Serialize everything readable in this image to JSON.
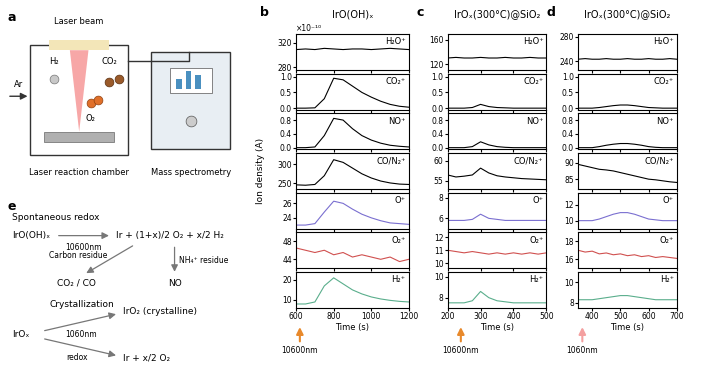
{
  "chart_data": [
    {
      "type": "line",
      "panel_label": "b",
      "title": "IrO(OH)ₓ",
      "multiplier": "×10⁻¹⁰",
      "ylabel": "Ion density (A)",
      "xlabel": "Time (s)",
      "x": [
        600,
        650,
        700,
        750,
        800,
        850,
        900,
        950,
        1000,
        1050,
        1100,
        1150,
        1200
      ],
      "xlim": [
        600,
        1200
      ],
      "xticks": [
        600,
        800,
        1000,
        1200
      ],
      "laser": {
        "wavelength": "10600nm",
        "time": 620,
        "color": "#e8892b"
      },
      "series": [
        {
          "name": "H₂O⁺",
          "color": "#000000",
          "values": [
            309,
            310,
            309,
            311,
            310,
            309,
            310,
            310,
            309,
            310,
            311,
            310,
            309
          ],
          "ylim": [
            275,
            335
          ],
          "yticks": [
            280,
            320
          ]
        },
        {
          "name": "CO₂⁺",
          "color": "#000000",
          "values": [
            0.0,
            0.0,
            0.01,
            0.3,
            0.95,
            0.9,
            0.7,
            0.5,
            0.35,
            0.22,
            0.12,
            0.06,
            0.03
          ],
          "ylim": [
            -0.05,
            1.1
          ],
          "yticks": [
            {
              "value": 0,
              "label": "0.0"
            },
            0.5,
            {
              "value": 1,
              "label": "1.0"
            }
          ]
        },
        {
          "name": "NO⁺",
          "color": "#000000",
          "values": [
            0.0,
            0.0,
            0.02,
            0.35,
            0.85,
            0.8,
            0.55,
            0.35,
            0.22,
            0.13,
            0.07,
            0.04,
            0.02
          ],
          "ylim": [
            -0.05,
            1.0
          ],
          "yticks": [
            {
              "value": 0,
              "label": "0.0"
            },
            0.4,
            0.8
          ]
        },
        {
          "name": "CO/N₂⁺",
          "color": "#000000",
          "values": [
            246,
            245,
            247,
            270,
            312,
            305,
            290,
            275,
            264,
            256,
            251,
            248,
            247
          ],
          "ylim": [
            235,
            330
          ],
          "yticks": [
            250,
            300
          ]
        },
        {
          "name": "O⁺",
          "color": "#7a6fd0",
          "values": [
            23.0,
            23.0,
            23.2,
            24.8,
            26.3,
            26.0,
            25.2,
            24.5,
            24.0,
            23.6,
            23.3,
            23.2,
            23.1
          ],
          "ylim": [
            22.5,
            27.5
          ],
          "yticks": [
            24,
            26
          ]
        },
        {
          "name": "O₂⁺",
          "color": "#d0504f",
          "values": [
            46.5,
            46,
            45.5,
            46,
            45,
            45.5,
            44.5,
            45,
            44.5,
            44,
            44.5,
            43.5,
            44
          ],
          "ylim": [
            42,
            50
          ],
          "yticks": [
            44,
            48
          ]
        },
        {
          "name": "H₂⁺",
          "color": "#5aae8c",
          "values": [
            8,
            8,
            9,
            17,
            21,
            18,
            15,
            13,
            11.5,
            10.5,
            9.8,
            9.3,
            9
          ],
          "ylim": [
            6,
            24
          ],
          "yticks": [
            10,
            20
          ]
        }
      ]
    },
    {
      "type": "line",
      "panel_label": "c",
      "title": "IrOₓ(300°C)@SiO₂",
      "xlabel": "Time (s)",
      "x": [
        200,
        225,
        250,
        275,
        300,
        325,
        350,
        375,
        400,
        425,
        450,
        475,
        500
      ],
      "xlim": [
        200,
        500
      ],
      "xticks": [
        200,
        300,
        400,
        500
      ],
      "laser": {
        "wavelength": "10600nm",
        "time": 240,
        "color": "#e8892b"
      },
      "series": [
        {
          "name": "H₂O⁺",
          "color": "#000000",
          "values": [
            130,
            131,
            130,
            130,
            131,
            130,
            130,
            131,
            130,
            130,
            131,
            130,
            130
          ],
          "ylim": [
            110,
            170
          ],
          "yticks": [
            120,
            160
          ]
        },
        {
          "name": "CO₂⁺",
          "color": "#000000",
          "values": [
            0,
            0,
            0,
            0.02,
            0.12,
            0.05,
            0.02,
            0.01,
            0,
            0,
            0,
            0,
            0
          ],
          "ylim": [
            -0.05,
            1.1
          ],
          "yticks": [
            {
              "value": 0,
              "label": "0.0"
            },
            0.5,
            {
              "value": 1,
              "label": "1.0"
            }
          ]
        },
        {
          "name": "NO⁺",
          "color": "#000000",
          "values": [
            0,
            0,
            0,
            0.03,
            0.17,
            0.08,
            0.03,
            0.01,
            0,
            0,
            0,
            0,
            0
          ],
          "ylim": [
            -0.05,
            1.0
          ],
          "yticks": [
            {
              "value": 0,
              "label": "0.0"
            },
            0.4,
            0.8
          ]
        },
        {
          "name": "CO/N₂⁺",
          "color": "#000000",
          "values": [
            56.5,
            56,
            56.2,
            56.5,
            58.2,
            57,
            56.3,
            56,
            55.8,
            55.6,
            55.5,
            55.4,
            55.3
          ],
          "ylim": [
            53,
            62
          ],
          "yticks": [
            55,
            60
          ]
        },
        {
          "name": "O⁺",
          "color": "#7a6fd0",
          "values": [
            5.8,
            5.8,
            5.8,
            5.9,
            6.4,
            6.0,
            5.9,
            5.8,
            5.8,
            5.8,
            5.8,
            5.8,
            5.8
          ],
          "ylim": [
            5,
            8.5
          ],
          "yticks": [
            6,
            8
          ]
        },
        {
          "name": "O₂⁺",
          "color": "#d0504f",
          "values": [
            11.0,
            10.9,
            10.8,
            10.9,
            10.8,
            10.7,
            10.8,
            10.7,
            10.8,
            10.7,
            10.8,
            10.7,
            10.8
          ],
          "ylim": [
            9.6,
            12.4
          ],
          "yticks": [
            10,
            11,
            12
          ]
        },
        {
          "name": "H₂⁺",
          "color": "#5aae8c",
          "values": [
            7.5,
            7.5,
            7.5,
            7.7,
            8.6,
            8.0,
            7.7,
            7.6,
            7.5,
            7.5,
            7.5,
            7.5,
            7.5
          ],
          "ylim": [
            7,
            10.5
          ],
          "yticks": [
            8,
            10
          ]
        }
      ]
    },
    {
      "type": "line",
      "panel_label": "d",
      "title": "IrOₓ(300°C)@SiO₂",
      "xlabel": "Time (s)",
      "x": [
        350,
        375,
        400,
        425,
        450,
        475,
        500,
        525,
        550,
        575,
        600,
        625,
        650,
        675,
        700
      ],
      "xlim": [
        350,
        700
      ],
      "xticks": [
        400,
        500,
        600,
        700
      ],
      "laser": {
        "wavelength": "1060nm",
        "time": 365,
        "color": "#f4a0a0"
      },
      "series": [
        {
          "name": "H₂O⁺",
          "color": "#000000",
          "values": [
            243,
            244,
            243,
            243,
            244,
            243,
            243,
            244,
            243,
            243,
            244,
            243,
            243,
            244,
            243
          ],
          "ylim": [
            225,
            285
          ],
          "yticks": [
            240,
            280
          ]
        },
        {
          "name": "CO₂⁺",
          "color": "#000000",
          "values": [
            0,
            0,
            0,
            0.02,
            0.05,
            0.08,
            0.1,
            0.1,
            0.08,
            0.05,
            0.02,
            0.01,
            0,
            0,
            0
          ],
          "ylim": [
            -0.05,
            1.1
          ],
          "yticks": [
            {
              "value": 0,
              "label": "0.0"
            },
            0.5,
            {
              "value": 1,
              "label": "1.0"
            }
          ]
        },
        {
          "name": "NO⁺",
          "color": "#000000",
          "values": [
            0,
            0,
            0,
            0.03,
            0.07,
            0.1,
            0.12,
            0.12,
            0.1,
            0.07,
            0.03,
            0.01,
            0,
            0,
            0
          ],
          "ylim": [
            -0.05,
            1.0
          ],
          "yticks": [
            {
              "value": 0,
              "label": "0.0"
            },
            0.4,
            0.8
          ]
        },
        {
          "name": "CO/N₂⁺",
          "color": "#000000",
          "values": [
            89.5,
            89,
            88.5,
            88,
            87.8,
            87.5,
            87,
            86.5,
            86,
            85.5,
            85,
            84.8,
            84.5,
            84.2,
            84
          ],
          "ylim": [
            82,
            93
          ],
          "yticks": [
            85,
            90
          ]
        },
        {
          "name": "O⁺",
          "color": "#7a6fd0",
          "values": [
            10,
            10,
            10,
            10.2,
            10.5,
            10.8,
            11,
            11,
            10.8,
            10.5,
            10.2,
            10.1,
            10,
            10,
            10
          ],
          "ylim": [
            9,
            13.5
          ],
          "yticks": [
            10,
            12
          ]
        },
        {
          "name": "O₂⁺",
          "color": "#d0504f",
          "values": [
            17,
            16.8,
            16.9,
            16.6,
            16.7,
            16.5,
            16.6,
            16.4,
            16.5,
            16.3,
            16.4,
            16.2,
            16.3,
            16.2,
            16.1
          ],
          "ylim": [
            15,
            19
          ],
          "yticks": [
            16,
            18
          ]
        },
        {
          "name": "H₂⁺",
          "color": "#5aae8c",
          "values": [
            8.3,
            8.3,
            8.3,
            8.4,
            8.5,
            8.6,
            8.7,
            8.7,
            8.6,
            8.5,
            8.4,
            8.3,
            8.3,
            8.3,
            8.3
          ],
          "ylim": [
            7.5,
            11
          ],
          "yticks": [
            8,
            10
          ]
        }
      ]
    }
  ],
  "diagram_a": {
    "label": "a",
    "laser": "Laser beam",
    "h2": "H₂",
    "co2": "CO₂",
    "o2": "O₂",
    "ar": "Ar",
    "chamber": "Laser reaction chamber",
    "ms": "Mass spectrometry"
  },
  "diagram_e": {
    "label": "e",
    "spontaneous": {
      "title": "Spontaneous redox",
      "reactant": "IrO(OH)ₓ",
      "product": "Ir + (1+x)/2 O₂ + x/2 H₂",
      "wavelength": "10600nm",
      "carbon_label": "Carbon residue",
      "carbon_product": "CO₂ / CO",
      "nh4_label": "NH₄⁺ residue",
      "nh4_product": "NO"
    },
    "crystallization": {
      "title": "Crystallization",
      "reactant": "IrOₓ",
      "product_1": "IrO₂ (crystalline)",
      "wavelength": "1060nm",
      "redox_label": "redox",
      "product_2": "Ir + x/2 O₂"
    }
  }
}
